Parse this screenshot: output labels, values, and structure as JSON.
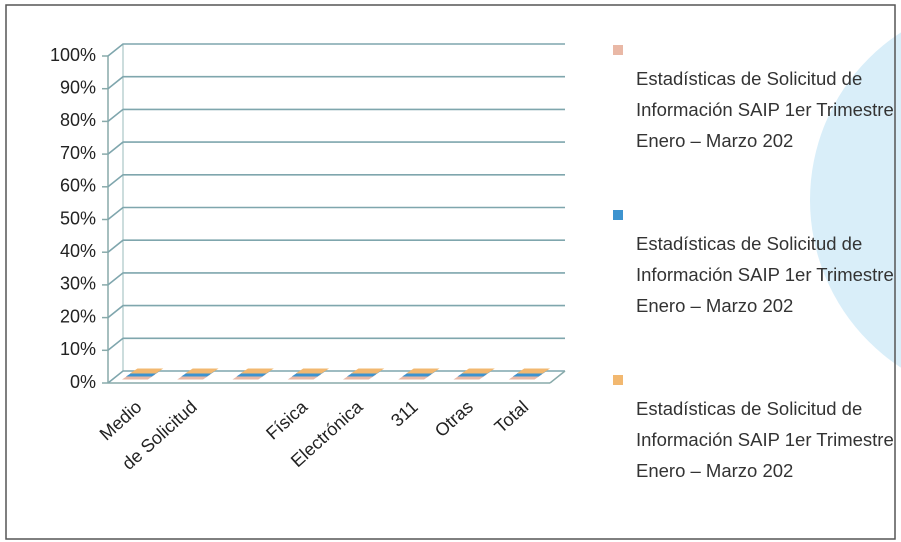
{
  "chart_data": {
    "type": "bar",
    "categories": [
      "Medio",
      "de Solicitud",
      null,
      "Física",
      "Electrónica",
      "311",
      "Otras",
      "Total"
    ],
    "series": [
      {
        "name": "Estadísticas de Solicitud de Información SAIP  1er Trimestre Enero – Marzo 202",
        "color": "#e9b8a6",
        "values": [
          0,
          0,
          0,
          0,
          0,
          0,
          0,
          0
        ]
      },
      {
        "name": "Estadísticas de Solicitud de Información SAIP  1er Trimestre Enero – Marzo 202",
        "color": "#3d93cf",
        "values": [
          0,
          0,
          0,
          0,
          0,
          0,
          0,
          0
        ]
      },
      {
        "name": "Estadísticas de Solicitud de Información SAIP  1er Trimestre Enero – Marzo 202",
        "color": "#f2b870",
        "values": [
          0,
          0,
          0,
          0,
          0,
          0,
          0,
          0
        ]
      }
    ],
    "ylim": [
      0,
      100
    ],
    "yticks": [
      {
        "value": 0,
        "label": "0%"
      },
      {
        "value": 10,
        "label": "10%"
      },
      {
        "value": 20,
        "label": "20%"
      },
      {
        "value": 30,
        "label": "30%"
      },
      {
        "value": 40,
        "label": "40%"
      },
      {
        "value": 50,
        "label": "50%"
      },
      {
        "value": 60,
        "label": "60%"
      },
      {
        "value": 70,
        "label": "70%"
      },
      {
        "value": 80,
        "label": "80%"
      },
      {
        "value": 90,
        "label": "90%"
      },
      {
        "value": 100,
        "label": "100%"
      }
    ],
    "grid": true,
    "legend": "right"
  }
}
